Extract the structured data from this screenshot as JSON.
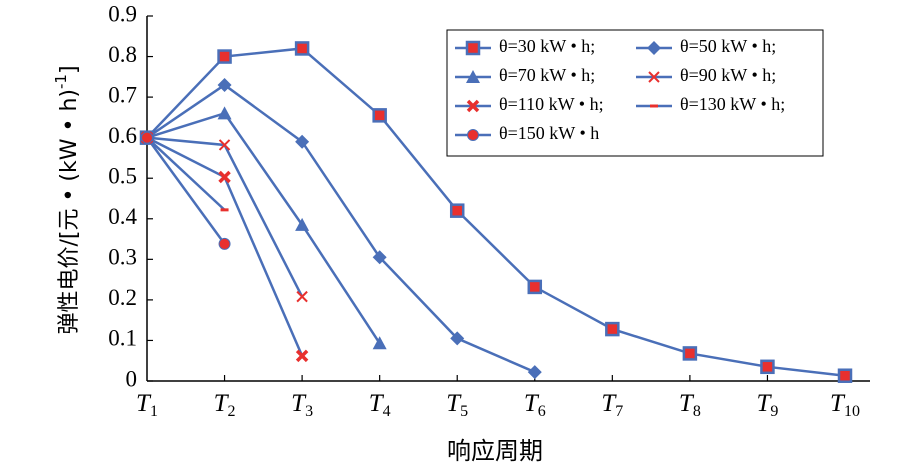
{
  "chart_data": {
    "type": "line",
    "xlabel": "响应周期",
    "ylabel": "弹性电价/[元 • (kW • h)",
    "ylabel_sup": "-1",
    "ylabel_end": "]",
    "categories": [
      "T1",
      "T2",
      "T3",
      "T4",
      "T5",
      "T6",
      "T7",
      "T8",
      "T9",
      "T10"
    ],
    "ylim": [
      0,
      0.9
    ],
    "yticks": [
      0,
      0.1,
      0.2,
      0.3,
      0.4,
      0.5,
      0.6,
      0.7,
      0.8,
      0.9
    ],
    "series": [
      {
        "name": "θ=30 kW • h;",
        "color": "#4a6fb8",
        "marker": "square",
        "marker_color": "#e8302e",
        "values": [
          0.6,
          0.8,
          0.82,
          0.655,
          0.42,
          0.232,
          0.128,
          0.068,
          0.035,
          0.013
        ]
      },
      {
        "name": "θ=50 kW • h;",
        "color": "#4a6fb8",
        "marker": "diamond",
        "marker_color": "#4a6fb8",
        "values": [
          0.6,
          0.73,
          0.59,
          0.305,
          0.105,
          0.022,
          null,
          null,
          null,
          null
        ]
      },
      {
        "name": "θ=70 kW • h;",
        "color": "#4a6fb8",
        "marker": "triangle",
        "marker_color": "#4a6fb8",
        "values": [
          0.6,
          0.66,
          0.385,
          0.093,
          null,
          null,
          null,
          null,
          null,
          null
        ]
      },
      {
        "name": "θ=90 kW • h;",
        "color": "#4a6fb8",
        "marker": "x",
        "marker_color": "#e8302e",
        "values": [
          0.6,
          0.582,
          0.208,
          null,
          null,
          null,
          null,
          null,
          null,
          null
        ]
      },
      {
        "name": "θ=110 kW • h;",
        "color": "#4a6fb8",
        "marker": "xbold",
        "marker_color": "#e8302e",
        "values": [
          0.6,
          0.503,
          0.062,
          null,
          null,
          null,
          null,
          null,
          null,
          null
        ]
      },
      {
        "name": "θ=130 kW • h;",
        "color": "#4a6fb8",
        "marker": "dash",
        "marker_color": "#e8302e",
        "values": [
          0.6,
          0.422,
          null,
          null,
          null,
          null,
          null,
          null,
          null,
          null
        ]
      },
      {
        "name": "θ=150 kW • h",
        "color": "#4a6fb8",
        "marker": "circle",
        "marker_color": "#e8302e",
        "values": [
          0.6,
          0.338,
          null,
          null,
          null,
          null,
          null,
          null,
          null,
          null
        ]
      }
    ]
  }
}
